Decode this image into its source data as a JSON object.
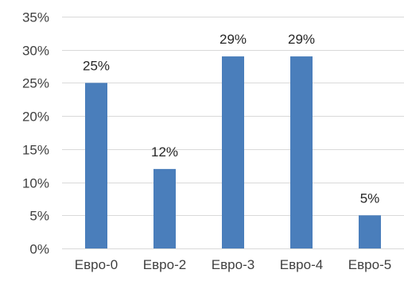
{
  "chart_data": {
    "type": "bar",
    "title": "",
    "xlabel": "",
    "ylabel": "",
    "categories": [
      "Евро-0",
      "Евро-2",
      "Евро-3",
      "Евро-4",
      "Евро-5"
    ],
    "values": [
      25,
      12,
      29,
      29,
      5
    ],
    "data_labels": [
      "25%",
      "12%",
      "29%",
      "29%",
      "5%"
    ],
    "ylim": [
      0,
      35
    ],
    "yticks": [
      0,
      5,
      10,
      15,
      20,
      25,
      30,
      35
    ],
    "ytick_labels": [
      "0%",
      "5%",
      "10%",
      "15%",
      "20%",
      "25%",
      "30%",
      "35%"
    ],
    "grid": true,
    "legend": "none",
    "colors": {
      "bar": "#4a7ebb",
      "grid": "#d9d9d9",
      "text": "#404040"
    }
  }
}
